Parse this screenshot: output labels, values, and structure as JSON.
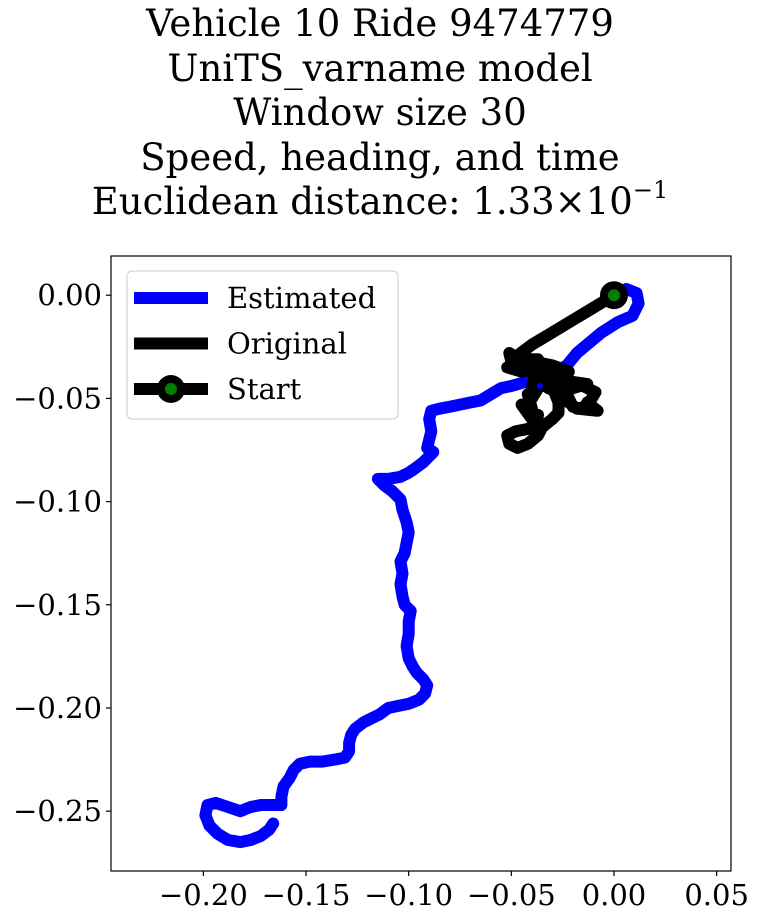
{
  "title_lines": [
    "Vehicle 10 Ride 9474779",
    "UniTS_varname model",
    "Window size 30",
    "Speed, heading, and time"
  ],
  "title_distance": {
    "prefix": "Euclidean distance: ",
    "mantissa": "1.33",
    "times": "×",
    "base": "10",
    "exponent": "−1"
  },
  "chart_data": {
    "type": "line",
    "xlim": [
      -0.245,
      0.057
    ],
    "ylim": [
      -0.279,
      0.019
    ],
    "grid": false,
    "legend_position": "top-left",
    "x_ticks": [
      -0.2,
      -0.15,
      -0.1,
      -0.05,
      0.0,
      0.05
    ],
    "x_tick_labels": [
      "−0.20",
      "−0.15",
      "−0.10",
      "−0.05",
      "0.00",
      "0.05"
    ],
    "y_ticks": [
      0.0,
      -0.05,
      -0.1,
      -0.15,
      -0.2,
      -0.25
    ],
    "y_tick_labels": [
      "0.00",
      "−0.05",
      "−0.10",
      "−0.15",
      "−0.20",
      "−0.25"
    ],
    "series": [
      {
        "name": "Estimated",
        "color": "#0000ff",
        "points": [
          [
            0.0,
            0.0
          ],
          [
            0.006,
            0.003
          ],
          [
            0.011,
            0.001
          ],
          [
            0.012,
            -0.004
          ],
          [
            0.009,
            -0.01
          ],
          [
            0.002,
            -0.013
          ],
          [
            -0.006,
            -0.018
          ],
          [
            -0.012,
            -0.023
          ],
          [
            -0.018,
            -0.028
          ],
          [
            -0.023,
            -0.034
          ],
          [
            -0.03,
            -0.038
          ],
          [
            -0.036,
            -0.04
          ],
          [
            -0.043,
            -0.042
          ],
          [
            -0.05,
            -0.044
          ],
          [
            -0.055,
            -0.045
          ],
          [
            -0.06,
            -0.048
          ],
          [
            -0.065,
            -0.051
          ],
          [
            -0.07,
            -0.052
          ],
          [
            -0.075,
            -0.053
          ],
          [
            -0.08,
            -0.054
          ],
          [
            -0.085,
            -0.055
          ],
          [
            -0.089,
            -0.056
          ],
          [
            -0.09,
            -0.06
          ],
          [
            -0.089,
            -0.066
          ],
          [
            -0.09,
            -0.07
          ],
          [
            -0.091,
            -0.074
          ],
          [
            -0.088,
            -0.076
          ],
          [
            -0.09,
            -0.078
          ],
          [
            -0.093,
            -0.081
          ],
          [
            -0.097,
            -0.084
          ],
          [
            -0.1,
            -0.086
          ],
          [
            -0.104,
            -0.088
          ],
          [
            -0.11,
            -0.089
          ],
          [
            -0.115,
            -0.089
          ],
          [
            -0.112,
            -0.092
          ],
          [
            -0.108,
            -0.095
          ],
          [
            -0.104,
            -0.099
          ],
          [
            -0.103,
            -0.104
          ],
          [
            -0.101,
            -0.11
          ],
          [
            -0.1,
            -0.115
          ],
          [
            -0.101,
            -0.12
          ],
          [
            -0.102,
            -0.125
          ],
          [
            -0.104,
            -0.129
          ],
          [
            -0.103,
            -0.135
          ],
          [
            -0.104,
            -0.14
          ],
          [
            -0.103,
            -0.146
          ],
          [
            -0.102,
            -0.15
          ],
          [
            -0.099,
            -0.153
          ],
          [
            -0.1,
            -0.158
          ],
          [
            -0.1,
            -0.164
          ],
          [
            -0.101,
            -0.17
          ],
          [
            -0.1,
            -0.176
          ],
          [
            -0.098,
            -0.18
          ],
          [
            -0.096,
            -0.183
          ],
          [
            -0.093,
            -0.186
          ],
          [
            -0.091,
            -0.189
          ],
          [
            -0.092,
            -0.193
          ],
          [
            -0.095,
            -0.196
          ],
          [
            -0.1,
            -0.198
          ],
          [
            -0.105,
            -0.199
          ],
          [
            -0.11,
            -0.2
          ],
          [
            -0.114,
            -0.203
          ],
          [
            -0.118,
            -0.205
          ],
          [
            -0.122,
            -0.207
          ],
          [
            -0.126,
            -0.21
          ],
          [
            -0.128,
            -0.213
          ],
          [
            -0.129,
            -0.217
          ],
          [
            -0.129,
            -0.221
          ],
          [
            -0.131,
            -0.224
          ],
          [
            -0.136,
            -0.225
          ],
          [
            -0.142,
            -0.226
          ],
          [
            -0.148,
            -0.226
          ],
          [
            -0.153,
            -0.227
          ],
          [
            -0.156,
            -0.23
          ],
          [
            -0.158,
            -0.234
          ],
          [
            -0.161,
            -0.238
          ],
          [
            -0.162,
            -0.243
          ],
          [
            -0.162,
            -0.247
          ],
          [
            -0.167,
            -0.247
          ],
          [
            -0.172,
            -0.247
          ],
          [
            -0.177,
            -0.248
          ],
          [
            -0.182,
            -0.25
          ],
          [
            -0.188,
            -0.248
          ],
          [
            -0.194,
            -0.246
          ],
          [
            -0.198,
            -0.247
          ],
          [
            -0.199,
            -0.252
          ],
          [
            -0.197,
            -0.257
          ],
          [
            -0.193,
            -0.261
          ],
          [
            -0.188,
            -0.264
          ],
          [
            -0.182,
            -0.265
          ],
          [
            -0.177,
            -0.264
          ],
          [
            -0.172,
            -0.262
          ],
          [
            -0.168,
            -0.259
          ],
          [
            -0.166,
            -0.256
          ]
        ]
      },
      {
        "name": "Original",
        "color": "#000000",
        "points": [
          [
            0.0,
            0.0
          ],
          [
            -0.01,
            -0.006
          ],
          [
            -0.02,
            -0.012
          ],
          [
            -0.03,
            -0.018
          ],
          [
            -0.04,
            -0.024
          ],
          [
            -0.048,
            -0.03
          ],
          [
            -0.051,
            -0.028
          ],
          [
            -0.05,
            -0.032
          ],
          [
            -0.042,
            -0.031
          ],
          [
            -0.037,
            -0.031
          ],
          [
            -0.045,
            -0.034
          ],
          [
            -0.052,
            -0.035
          ],
          [
            -0.045,
            -0.037
          ],
          [
            -0.035,
            -0.035
          ],
          [
            -0.04,
            -0.032
          ],
          [
            -0.03,
            -0.034
          ],
          [
            -0.022,
            -0.037
          ],
          [
            -0.028,
            -0.039
          ],
          [
            -0.038,
            -0.037
          ],
          [
            -0.04,
            -0.045
          ],
          [
            -0.03,
            -0.043
          ],
          [
            -0.025,
            -0.04
          ],
          [
            -0.02,
            -0.042
          ],
          [
            -0.013,
            -0.043
          ],
          [
            -0.02,
            -0.045
          ],
          [
            -0.025,
            -0.048
          ],
          [
            -0.032,
            -0.045
          ],
          [
            -0.035,
            -0.042
          ],
          [
            -0.04,
            -0.05
          ],
          [
            -0.042,
            -0.048
          ],
          [
            -0.04,
            -0.055
          ],
          [
            -0.045,
            -0.053
          ],
          [
            -0.04,
            -0.06
          ],
          [
            -0.037,
            -0.058
          ],
          [
            -0.038,
            -0.064
          ],
          [
            -0.043,
            -0.065
          ],
          [
            -0.048,
            -0.066
          ],
          [
            -0.052,
            -0.068
          ],
          [
            -0.051,
            -0.072
          ],
          [
            -0.047,
            -0.074
          ],
          [
            -0.042,
            -0.072
          ],
          [
            -0.037,
            -0.068
          ],
          [
            -0.035,
            -0.064
          ],
          [
            -0.03,
            -0.06
          ],
          [
            -0.027,
            -0.057
          ],
          [
            -0.027,
            -0.052
          ],
          [
            -0.029,
            -0.047
          ],
          [
            -0.025,
            -0.046
          ],
          [
            -0.022,
            -0.05
          ],
          [
            -0.02,
            -0.054
          ],
          [
            -0.016,
            -0.055
          ],
          [
            -0.012,
            -0.052
          ],
          [
            -0.009,
            -0.047
          ],
          [
            -0.015,
            -0.044
          ],
          [
            -0.02,
            -0.043
          ],
          [
            -0.025,
            -0.048
          ],
          [
            -0.022,
            -0.052
          ],
          [
            -0.018,
            -0.055
          ],
          [
            -0.008,
            -0.056
          ],
          [
            -0.013,
            -0.052
          ]
        ]
      }
    ],
    "start_point": [
      0.0,
      0.0
    ],
    "start_marker_colors": {
      "outer": "#000000",
      "inner": "#008000"
    },
    "center_marker": {
      "point": [
        -0.036,
        -0.044
      ],
      "color": "#0000ff"
    },
    "legend": [
      {
        "label": "Estimated",
        "color": "#0000ff",
        "marker": false
      },
      {
        "label": "Original",
        "color": "#000000",
        "marker": false
      },
      {
        "label": "Start",
        "color": "#000000",
        "marker": true,
        "marker_inner": "#008000"
      }
    ]
  }
}
